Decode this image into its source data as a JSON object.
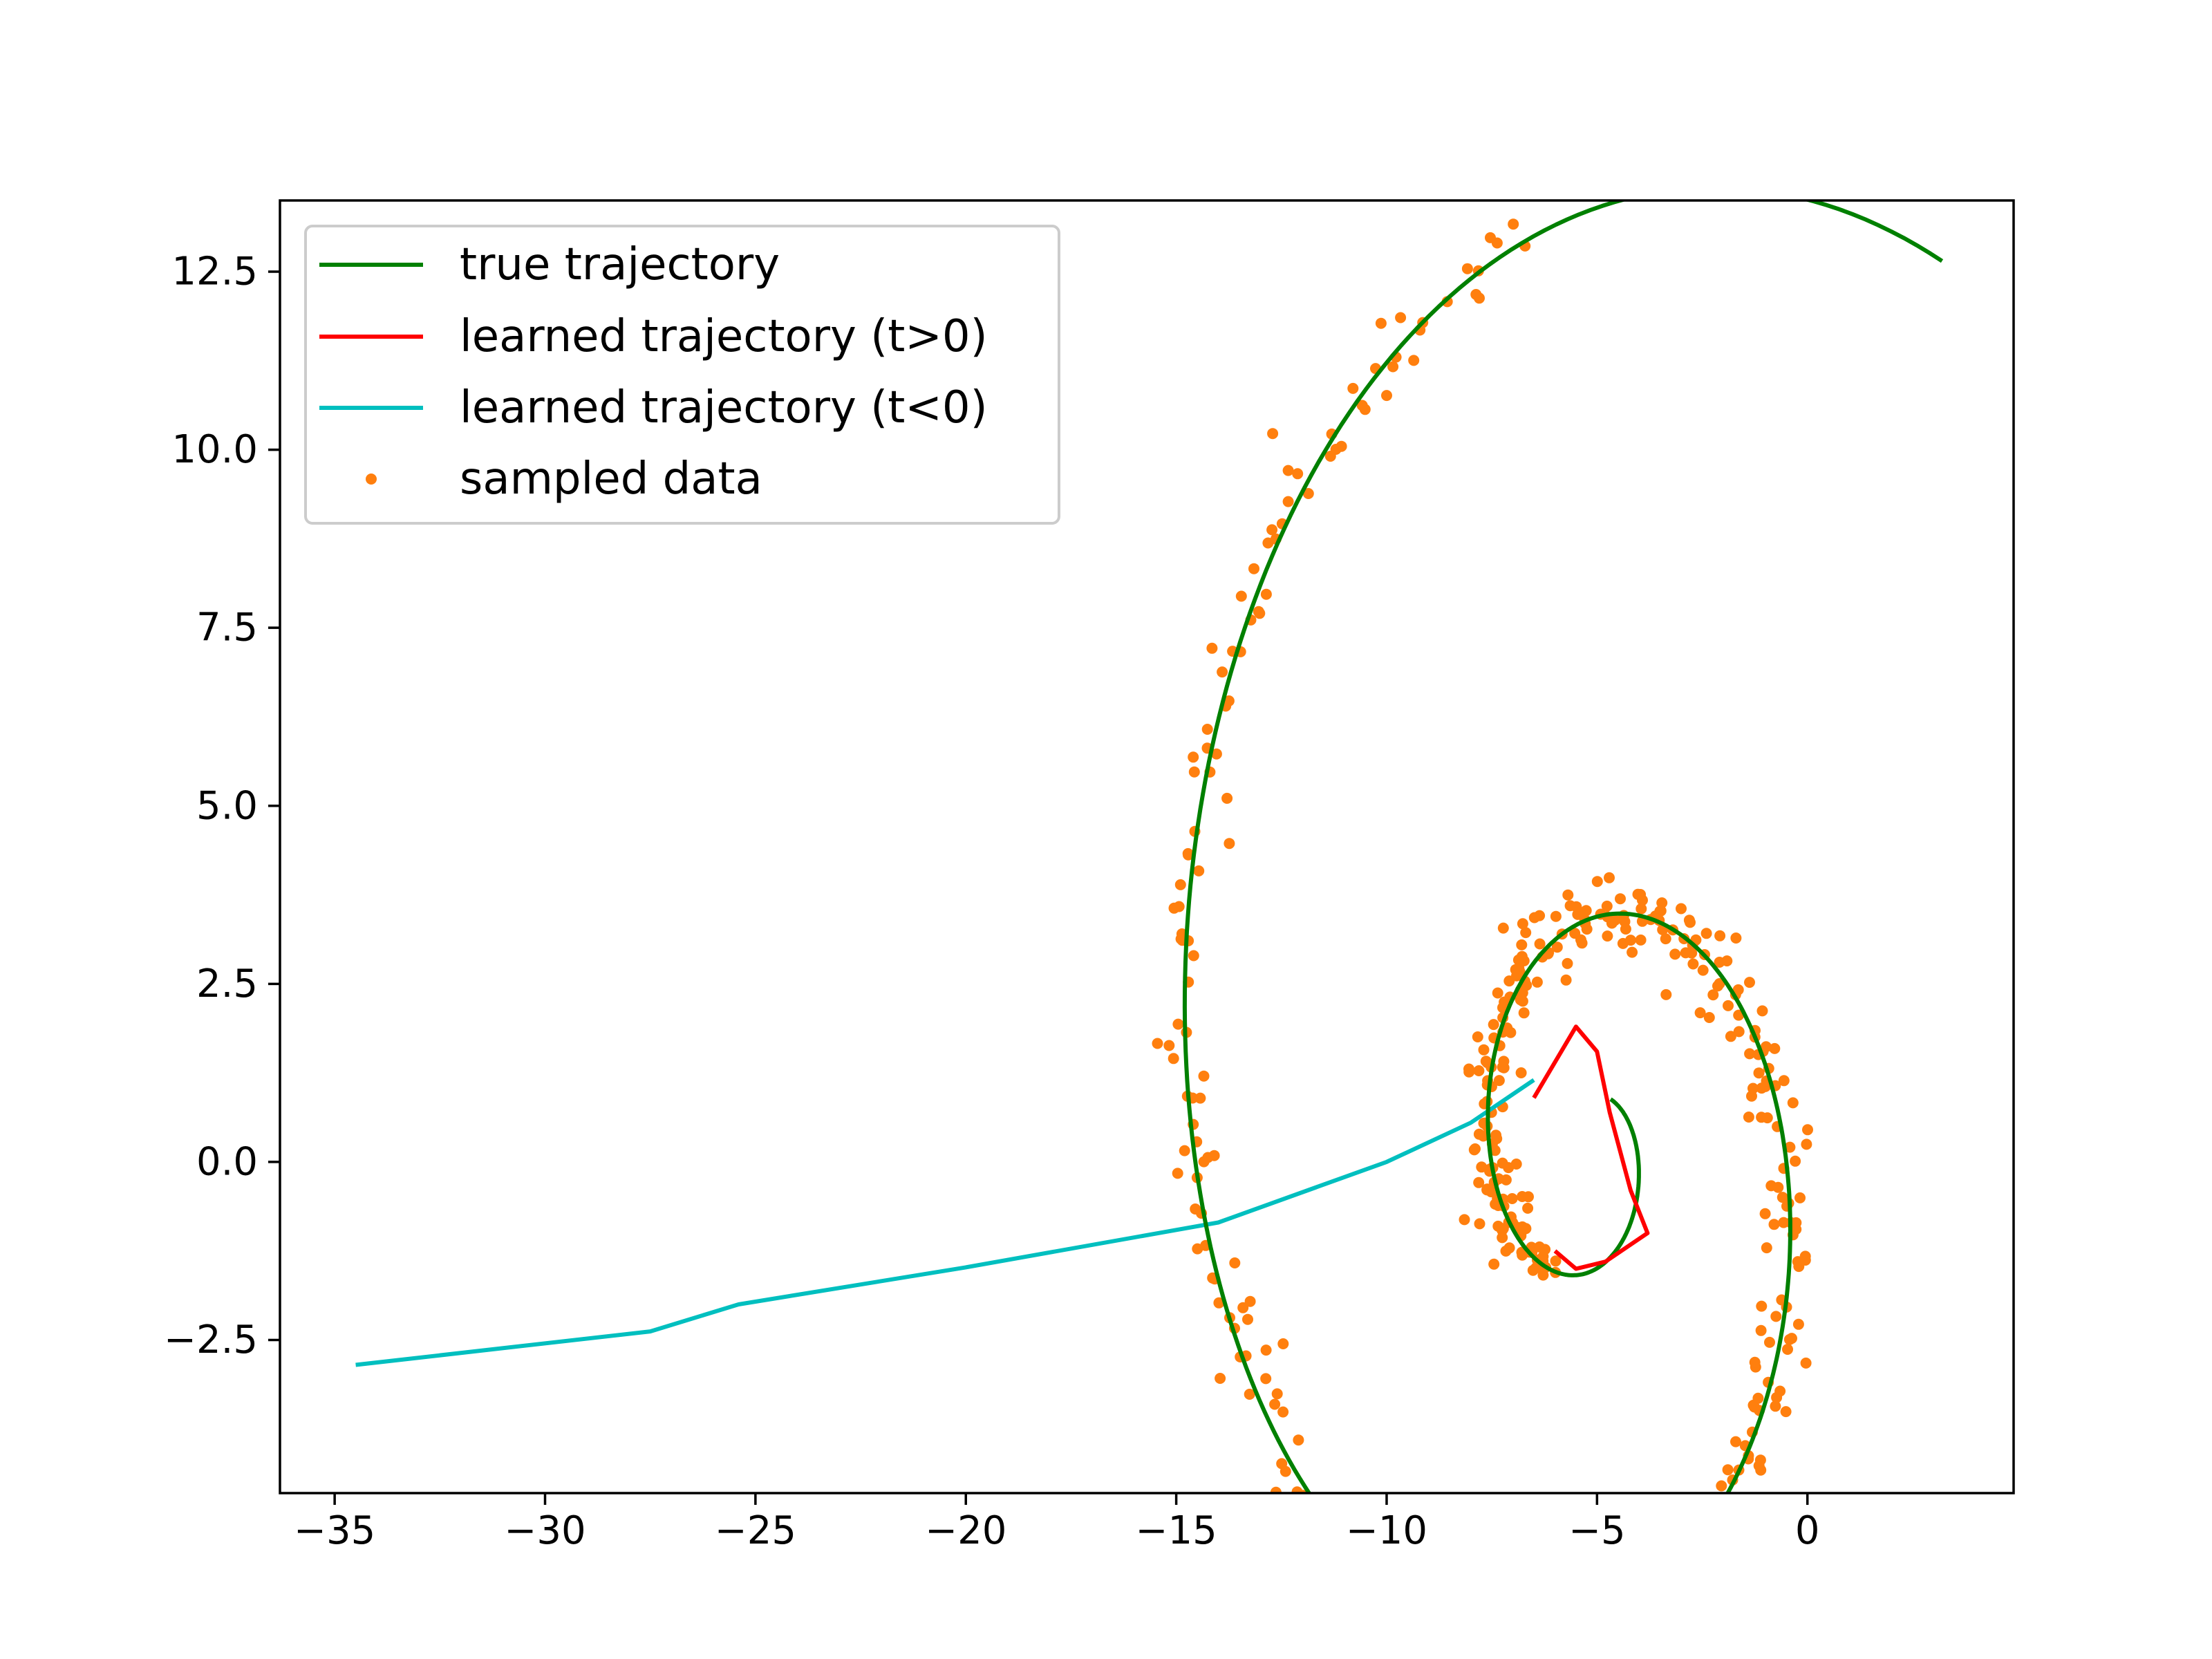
{
  "chart_data": {
    "type": "line",
    "title": "",
    "xlabel": "",
    "ylabel": "",
    "xlim": [
      -36.3,
      4.9
    ],
    "ylim": [
      -4.65,
      13.5
    ],
    "xticks": [
      -35,
      -30,
      -25,
      -20,
      -15,
      -10,
      -5,
      0
    ],
    "xtick_labels": [
      "−35",
      "−30",
      "−25",
      "−20",
      "−15",
      "−10",
      "−5",
      "0"
    ],
    "yticks": [
      -2.5,
      0.0,
      2.5,
      5.0,
      7.5,
      10.0,
      12.5
    ],
    "ytick_labels": [
      "−2.5",
      "0.0",
      "2.5",
      "5.0",
      "7.5",
      "10.0",
      "12.5"
    ],
    "grid": false,
    "legend_position": "upper-left",
    "series": [
      {
        "name": "true trajectory",
        "kind": "line",
        "color": "#008000",
        "spiral": {
          "center": [
            -5.2,
            0.1
          ],
          "start": [
            3.2,
            12.65
          ],
          "end": [
            -4.8,
            -0.75
          ],
          "turns": 2.0
        }
      },
      {
        "name": "learned trajectory (t>0)",
        "kind": "line",
        "color": "#ff0000",
        "points": [
          [
            -6.5,
            0.9
          ],
          [
            -5.5,
            1.9
          ],
          [
            -5.0,
            1.55
          ],
          [
            -4.7,
            0.7
          ],
          [
            -4.2,
            -0.4
          ],
          [
            -3.8,
            -1.0
          ],
          [
            -4.8,
            -1.4
          ],
          [
            -5.5,
            -1.5
          ],
          [
            -6.0,
            -1.25
          ]
        ]
      },
      {
        "name": "learned trajectory (t<0)",
        "kind": "line",
        "color": "#00bfbf",
        "points": [
          [
            -34.5,
            -2.85
          ],
          [
            -27.5,
            -2.38
          ],
          [
            -25.4,
            -2.0
          ],
          [
            -20,
            -1.48
          ],
          [
            -14.0,
            -0.85
          ],
          [
            -10.0,
            0.0
          ],
          [
            -8.0,
            0.55
          ],
          [
            -6.5,
            1.15
          ]
        ]
      },
      {
        "name": "sampled data",
        "kind": "scatter",
        "color": "#ff7f0e",
        "count": 480,
        "noise": 0.28
      }
    ]
  }
}
